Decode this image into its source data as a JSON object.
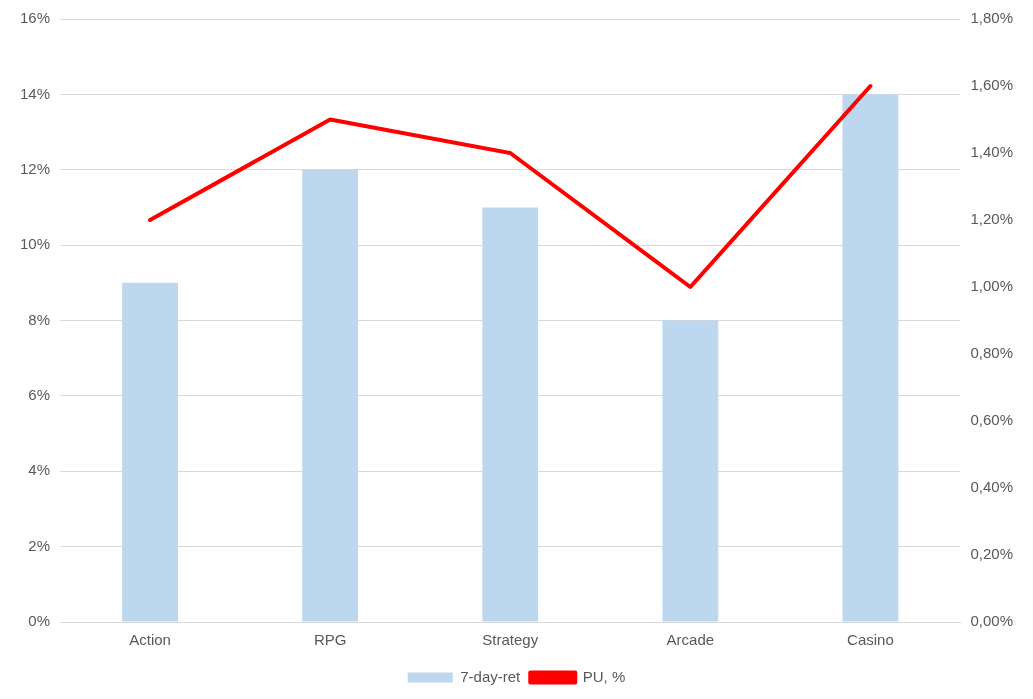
{
  "chart_data": {
    "type": "bar",
    "categories": [
      "Action",
      "RPG",
      "Strategy",
      "Arcade",
      "Casino"
    ],
    "series": [
      {
        "name": "7-day-ret",
        "color": "#bdd7ee",
        "values": [
          9,
          12,
          11,
          8,
          14
        ]
      },
      {
        "name": "PU, %",
        "type": "line",
        "axis": "y2",
        "color": "#ff0000",
        "values": [
          1.2,
          1.5,
          1.4,
          1.0,
          1.6
        ]
      }
    ],
    "ylim": [
      0,
      16
    ],
    "yticks": [
      {
        "value": 0,
        "label": "0%"
      },
      {
        "value": 2,
        "label": "2%"
      },
      {
        "value": 4,
        "label": "4%"
      },
      {
        "value": 6,
        "label": "6%"
      },
      {
        "value": 8,
        "label": "8%"
      },
      {
        "value": 10,
        "label": "10%"
      },
      {
        "value": 12,
        "label": "12%"
      },
      {
        "value": 14,
        "label": "14%"
      },
      {
        "value": 16,
        "label": "16%"
      }
    ],
    "y2lim": [
      0,
      1.8
    ],
    "y2ticks": [
      {
        "value": 0,
        "label": "0,00%"
      },
      {
        "value": 0.2,
        "label": "0,20%"
      },
      {
        "value": 0.4,
        "label": "0,40%"
      },
      {
        "value": 0.6,
        "label": "0,60%"
      },
      {
        "value": 0.8,
        "label": "0,80%"
      },
      {
        "value": 1.0,
        "label": "1,00%"
      },
      {
        "value": 1.2,
        "label": "1,20%"
      },
      {
        "value": 1.4,
        "label": "1,40%"
      },
      {
        "value": 1.6,
        "label": "1,60%"
      },
      {
        "value": 1.8,
        "label": "1,80%"
      }
    ],
    "grid": "y",
    "legend": "bottom",
    "marker": "none"
  }
}
